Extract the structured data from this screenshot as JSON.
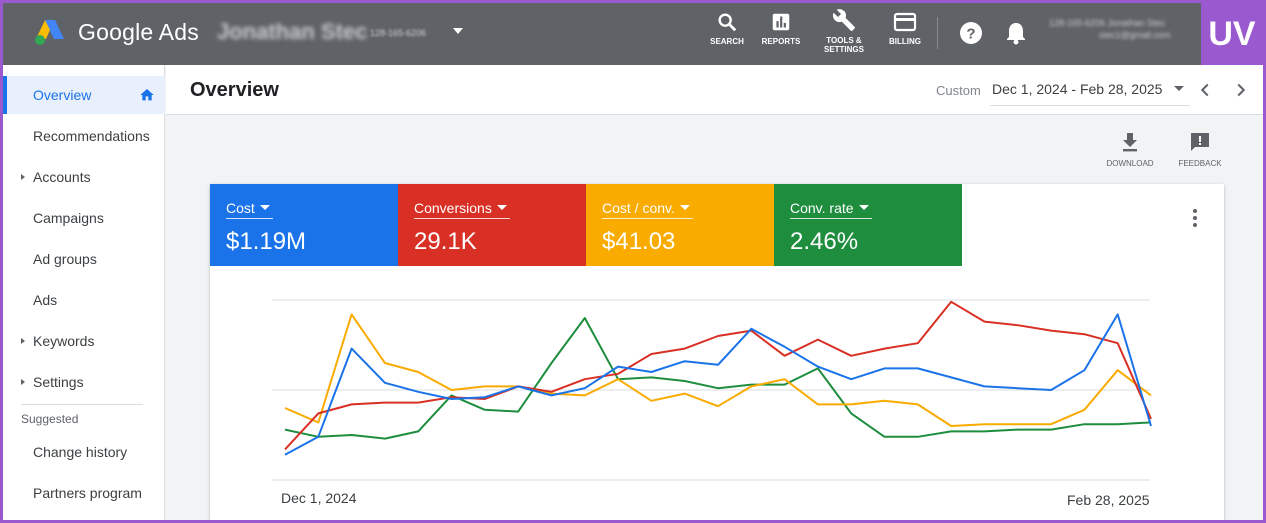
{
  "topbar": {
    "brand": "Google Ads",
    "account_name": "Jonathan Stec",
    "account_id": "128-165-6206",
    "tools": [
      {
        "label": "SEARCH",
        "icon": "search-icon"
      },
      {
        "label": "REPORTS",
        "icon": "bar-chart-icon"
      },
      {
        "label": "TOOLS &",
        "label2": "SETTINGS",
        "icon": "wrench-icon"
      },
      {
        "label": "BILLING",
        "icon": "credit-card-icon"
      }
    ],
    "user_line1": "128-165-6206 Jonathan Stec",
    "user_line2": "stec1@gmail.com",
    "badge": "UV"
  },
  "sidebar": {
    "items": [
      {
        "label": "Overview",
        "active": true
      },
      {
        "label": "Recommendations"
      },
      {
        "label": "Accounts",
        "expandable": true
      },
      {
        "label": "Campaigns"
      },
      {
        "label": "Ad groups"
      },
      {
        "label": "Ads"
      },
      {
        "label": "Keywords",
        "expandable": true
      },
      {
        "label": "Settings",
        "expandable": true
      }
    ],
    "section": "Suggested",
    "suggested": [
      {
        "label": "Change history"
      },
      {
        "label": "Partners program"
      }
    ]
  },
  "header": {
    "title": "Overview",
    "date_label": "Custom",
    "date_range": "Dec 1, 2024 - Feb 28, 2025"
  },
  "actions": {
    "download": "DOWNLOAD",
    "feedback": "FEEDBACK"
  },
  "metrics": [
    {
      "label": "Cost",
      "value": "$1.19M",
      "color": "#1a73e8"
    },
    {
      "label": "Conversions",
      "value": "29.1K",
      "color": "#d93025"
    },
    {
      "label": "Cost / conv.",
      "value": "$41.03",
      "color": "#f9ab00"
    },
    {
      "label": "Conv. rate",
      "value": "2.46%",
      "color": "#1e8e3e"
    }
  ],
  "chart_data": {
    "type": "line",
    "x_start_label": "Dec 1, 2024",
    "x_end_label": "Feb 28, 2025",
    "normalized": true,
    "series": [
      {
        "name": "Cost",
        "color": "#1a73e8",
        "values": [
          0.14,
          0.24,
          0.73,
          0.54,
          0.49,
          0.45,
          0.46,
          0.52,
          0.47,
          0.51,
          0.63,
          0.6,
          0.66,
          0.64,
          0.84,
          0.74,
          0.63,
          0.56,
          0.62,
          0.62,
          0.57,
          0.52,
          0.51,
          0.5,
          0.61,
          0.92,
          0.3
        ]
      },
      {
        "name": "Conversions",
        "color": "#d93025",
        "values": [
          0.17,
          0.37,
          0.42,
          0.43,
          0.43,
          0.46,
          0.45,
          0.52,
          0.49,
          0.56,
          0.59,
          0.7,
          0.73,
          0.8,
          0.83,
          0.69,
          0.78,
          0.69,
          0.73,
          0.76,
          0.99,
          0.88,
          0.86,
          0.83,
          0.81,
          0.76,
          0.34
        ]
      },
      {
        "name": "Cost / conv.",
        "color": "#f9ab00",
        "values": [
          0.4,
          0.32,
          0.92,
          0.65,
          0.6,
          0.5,
          0.52,
          0.52,
          0.48,
          0.47,
          0.56,
          0.44,
          0.48,
          0.41,
          0.52,
          0.56,
          0.42,
          0.42,
          0.44,
          0.42,
          0.3,
          0.31,
          0.31,
          0.31,
          0.39,
          0.61,
          0.47
        ]
      },
      {
        "name": "Conv. rate",
        "color": "#1e8e3e",
        "values": [
          0.28,
          0.24,
          0.25,
          0.23,
          0.27,
          0.47,
          0.39,
          0.38,
          0.65,
          0.9,
          0.56,
          0.57,
          0.55,
          0.51,
          0.53,
          0.53,
          0.62,
          0.37,
          0.24,
          0.24,
          0.27,
          0.27,
          0.28,
          0.28,
          0.31,
          0.31,
          0.32
        ]
      }
    ],
    "grid": true,
    "legend": "none"
  }
}
